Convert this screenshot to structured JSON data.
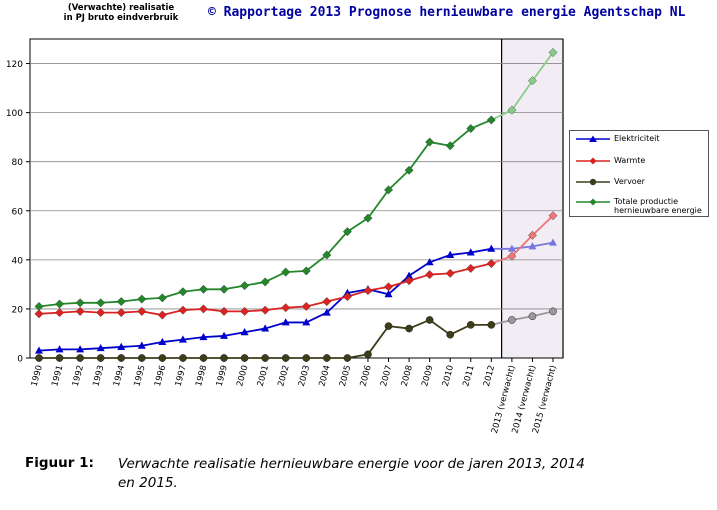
{
  "header": {
    "ylabel_line1": "(Verwachte) realisatie",
    "ylabel_line2": "in PJ bruto eindverbruik",
    "copyright": "© Rapportage 2013 Prognose hernieuwbare energie Agentschap NL"
  },
  "caption": {
    "label": "Figuur 1:",
    "text": "Verwachte realisatie hernieuwbare energie voor de jaren 2013, 2014 en 2015."
  },
  "chart_data": {
    "type": "line",
    "categories": [
      "1990",
      "1991",
      "1992",
      "1993",
      "1994",
      "1995",
      "1996",
      "1997",
      "1998",
      "1999",
      "2000",
      "2001",
      "2002",
      "2003",
      "2004",
      "2005",
      "2006",
      "2007",
      "2008",
      "2009",
      "2010",
      "2011",
      "2012",
      "2013 (verwacht)",
      "2014 (verwacht)",
      "2015 (verwacht)"
    ],
    "ylim": [
      0,
      130
    ],
    "yticks": [
      0,
      20,
      40,
      60,
      80,
      100,
      120
    ],
    "grid": true,
    "legend_position": "right",
    "highlight_region": {
      "from": "2013 (verwacht)",
      "to": "2015 (verwacht)"
    },
    "series": [
      {
        "name": "Elektriciteit",
        "color": "#0000cc",
        "light_color": "#7777dd",
        "marker": "triangle",
        "values": [
          3,
          3.5,
          3.5,
          4,
          4.5,
          5,
          6.5,
          7.5,
          8.5,
          9,
          10.5,
          12,
          14.5,
          14.5,
          18.5,
          26.5,
          28,
          26,
          33.5,
          39,
          42,
          43,
          44.5,
          44.5,
          45.5,
          47
        ]
      },
      {
        "name": "Warmte",
        "color": "#dd2222",
        "light_color": "#ee7777",
        "marker": "diamond",
        "values": [
          18,
          18.5,
          19,
          18.5,
          18.5,
          19,
          17.5,
          19.5,
          20,
          19,
          19,
          19.5,
          20.5,
          21,
          23,
          25,
          27.5,
          29,
          31.5,
          34,
          34.5,
          36.5,
          38.5,
          41.5,
          50,
          58
        ]
      },
      {
        "name": "Vervoer",
        "color": "#3d3d1a",
        "light_color": "#999999",
        "marker": "circle",
        "values": [
          0,
          0,
          0,
          0,
          0,
          0,
          0,
          0,
          0,
          0,
          0,
          0,
          0,
          0,
          0,
          0,
          1.5,
          13,
          12,
          15.5,
          9.5,
          13.5,
          13.5,
          15.5,
          17,
          19
        ]
      },
      {
        "name": "Totale productie hernieuwbare energie",
        "color": "#22882a",
        "light_color": "#88cc88",
        "marker": "diamond",
        "values": [
          21,
          22,
          22.5,
          22.5,
          23,
          24,
          24.5,
          27,
          28,
          28,
          29.5,
          31,
          35,
          35.5,
          42,
          51.5,
          57,
          68.5,
          76.5,
          88,
          86.5,
          93.5,
          97,
          101,
          113,
          124.5
        ]
      }
    ]
  }
}
